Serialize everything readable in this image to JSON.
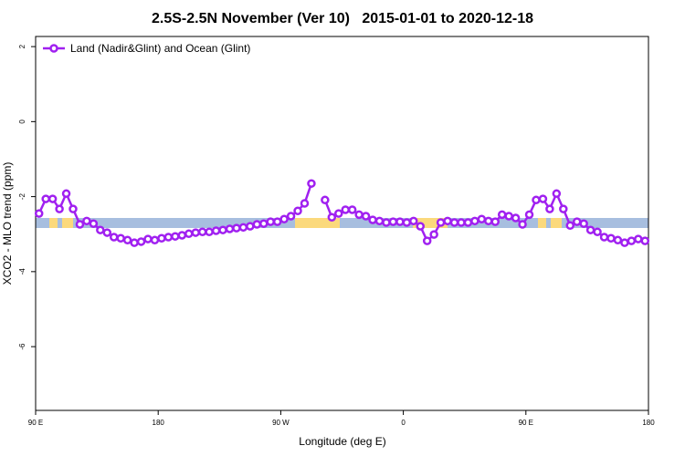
{
  "chart_data": {
    "type": "line",
    "title": "2.5S-2.5N November (Ver 10)   2015-01-01 to 2020-12-18",
    "x_label": "Longitude (deg E)",
    "y_label": "XCO2 - MLO trend (ppm)",
    "xlim": [
      90,
      540
    ],
    "ylim": [
      -7.7,
      2.27
    ],
    "xticks": [
      {
        "value": 90,
        "label": "90 E"
      },
      180,
      {
        "value": 270,
        "label": "90 W"
      },
      {
        "value": 360,
        "label": "0"
      },
      {
        "value": 450,
        "label": "90 E"
      },
      {
        "value": 540,
        "label": "180"
      }
    ],
    "yticks": [
      2,
      0,
      -2,
      -4,
      -6
    ],
    "legend": "top-left",
    "x": [
      92.5,
      97.5,
      102.5,
      107.5,
      112.5,
      117.5,
      122.5,
      127.5,
      132.5,
      137.5,
      142.5,
      147.5,
      152.5,
      157.5,
      162.5,
      167.5,
      172.5,
      177.5,
      182.5,
      187.5,
      192.5,
      197.5,
      202.5,
      207.5,
      212.5,
      217.5,
      222.5,
      227.5,
      232.5,
      237.5,
      242.5,
      247.5,
      252.5,
      257.5,
      262.5,
      267.5,
      272.5,
      277.5,
      282.5,
      287.5,
      292.5,
      297.5,
      302.5,
      307.5,
      312.5,
      317.5,
      322.5,
      327.5,
      332.5,
      337.5,
      342.5,
      347.5,
      352.5,
      357.5,
      362.5,
      367.5,
      372.5,
      377.5,
      382.5,
      387.5,
      392.5,
      397.5,
      402.5,
      407.5,
      412.5,
      417.5,
      422.5,
      427.5,
      432.5,
      437.5,
      442.5,
      447.5,
      452.5,
      457.5,
      462.5,
      467.5,
      472.5,
      477.5,
      482.5,
      487.5,
      492.5,
      497.5,
      502.5,
      507.5,
      512.5,
      517.5,
      522.5,
      527.5,
      532.5,
      537.5
    ],
    "series": [
      {
        "name": "Land (Nadir&Glint) and Ocean (Glint)",
        "color": "#a020f0",
        "values": [
          -2.45,
          -2.06,
          -2.06,
          -2.33,
          -1.92,
          -2.33,
          -2.74,
          -2.65,
          -2.72,
          -2.89,
          -2.96,
          -3.08,
          -3.11,
          -3.16,
          -3.23,
          -3.2,
          -3.13,
          -3.16,
          -3.11,
          -3.08,
          -3.06,
          -3.03,
          -2.99,
          -2.96,
          -2.94,
          -2.94,
          -2.91,
          -2.89,
          -2.86,
          -2.84,
          -2.82,
          -2.79,
          -2.74,
          -2.72,
          -2.67,
          -2.67,
          -2.6,
          -2.52,
          -2.38,
          -2.18,
          -1.65,
          null,
          -2.09,
          -2.55,
          -2.45,
          -2.35,
          -2.35,
          -2.48,
          -2.52,
          -2.62,
          -2.65,
          -2.69,
          -2.67,
          -2.67,
          -2.69,
          -2.65,
          -2.79,
          -3.18,
          -3.01,
          -2.69,
          -2.65,
          -2.69,
          -2.69,
          -2.69,
          -2.65,
          -2.6,
          -2.65,
          -2.67,
          -2.48,
          -2.52,
          -2.57,
          -2.74,
          -2.48,
          -2.09,
          -2.06,
          -2.33,
          -1.92,
          -2.33,
          -2.77,
          -2.67,
          -2.72,
          -2.89,
          -2.94,
          -3.08,
          -3.11,
          -3.16,
          -3.23,
          -3.18,
          -3.13,
          -3.18
        ]
      }
    ]
  }
}
